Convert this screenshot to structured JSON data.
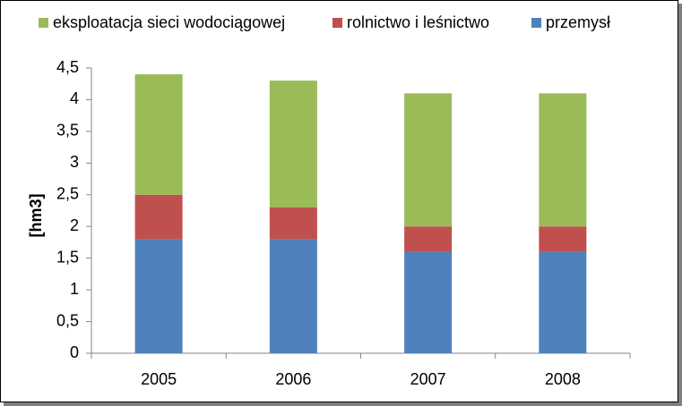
{
  "chart_data": {
    "type": "bar",
    "stacked": true,
    "categories": [
      "2005",
      "2006",
      "2007",
      "2008"
    ],
    "series": [
      {
        "name": "przemysł",
        "color": "#4f81bd",
        "values": [
          1.8,
          1.8,
          1.6,
          1.6
        ]
      },
      {
        "name": "rolnictwo i leśnictwo",
        "color": "#c0504d",
        "values": [
          0.7,
          0.5,
          0.4,
          0.4
        ]
      },
      {
        "name": "eksploatacja sieci wodociągowej",
        "color": "#9bbb59",
        "values": [
          1.9,
          2.0,
          2.1,
          2.1
        ]
      }
    ],
    "legend_order": [
      "eksploatacja sieci wodociągowej",
      "rolnictwo i leśnictwo",
      "przemysł"
    ],
    "legend_position": "top",
    "title": "",
    "xlabel": "",
    "ylabel": "[hm3]",
    "ylim": [
      0,
      4.5
    ],
    "yticks": [
      "0",
      "0,5",
      "1",
      "1,5",
      "2",
      "2,5",
      "3",
      "3,5",
      "4",
      "4,5"
    ],
    "grid": false
  }
}
